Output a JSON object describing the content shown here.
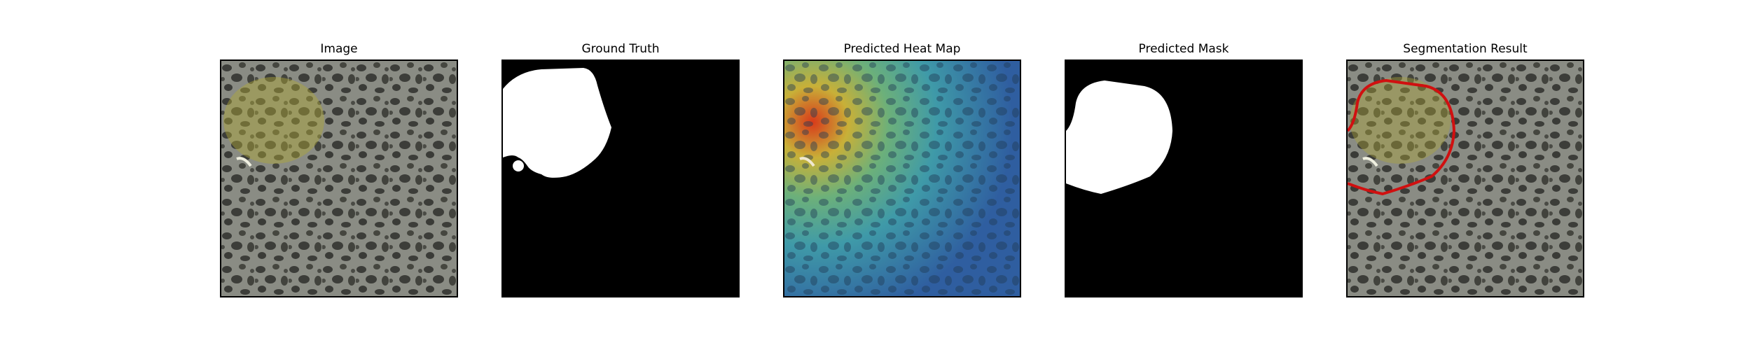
{
  "figure": {
    "panels": [
      {
        "title": "Image",
        "kind": "photo"
      },
      {
        "title": "Ground Truth",
        "kind": "mask"
      },
      {
        "title": "Predicted Heat Map",
        "kind": "heatmap"
      },
      {
        "title": "Predicted Mask",
        "kind": "mask"
      },
      {
        "title": "Segmentation Result",
        "kind": "overlay"
      }
    ],
    "colors": {
      "mask_foreground": "#ffffff",
      "mask_background": "#000000",
      "contour": "#d01010",
      "heat_hot": "#d83a1a",
      "heat_warm": "#d8c83a",
      "heat_mid": "#4fb09a",
      "heat_cool": "#2f6aa8",
      "texture_light": "#8a8c84",
      "texture_dark": "#3c3d39"
    }
  }
}
